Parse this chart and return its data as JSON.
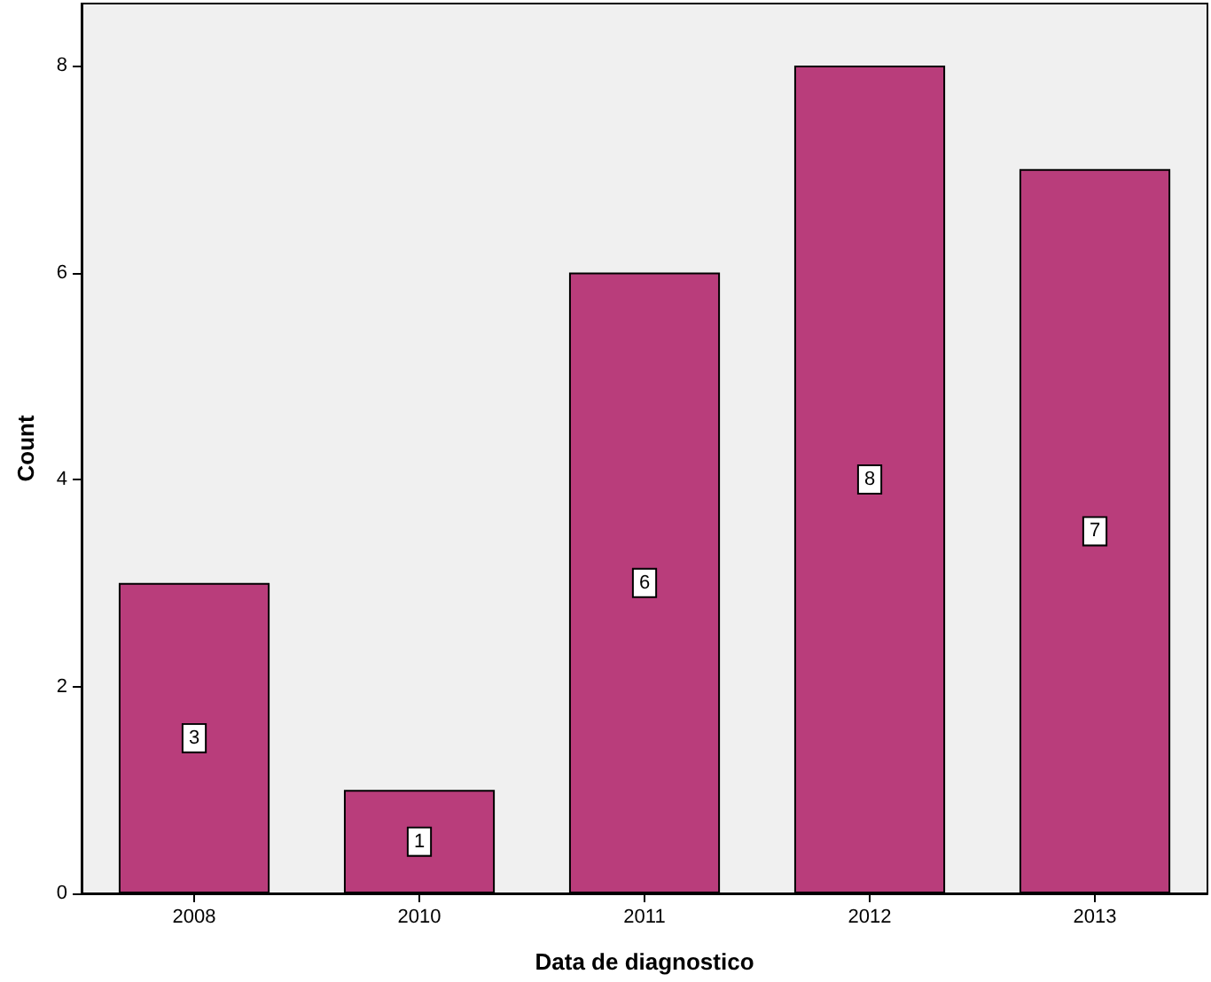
{
  "chart_data": {
    "type": "bar",
    "xlabel": "Data de diagnostico",
    "ylabel": "Count",
    "categories": [
      "2008",
      "2010",
      "2011",
      "2012",
      "2013"
    ],
    "values": [
      3,
      1,
      6,
      8,
      7
    ],
    "color": "#b93d7b",
    "ylim": [
      0,
      8.6
    ],
    "yticks": [
      0,
      2,
      4,
      6,
      8
    ],
    "data_labels": true
  }
}
